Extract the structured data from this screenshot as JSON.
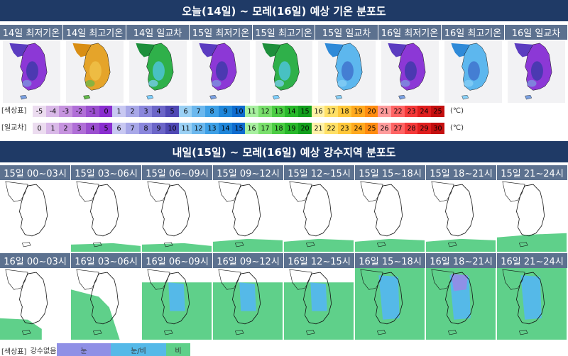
{
  "temp_section": {
    "title": "오늘(14일) ~ 모레(16일) 예상 기온 분포도",
    "panels": [
      {
        "label": "14일 최저기온",
        "scheme": "purple"
      },
      {
        "label": "14일 최고기온",
        "scheme": "warm"
      },
      {
        "label": "14일 일교차",
        "scheme": "green"
      },
      {
        "label": "15일 최저기온",
        "scheme": "purple"
      },
      {
        "label": "15일 최고기온",
        "scheme": "green"
      },
      {
        "label": "15일 일교차",
        "scheme": "cyan"
      },
      {
        "label": "16일 최저기온",
        "scheme": "purple"
      },
      {
        "label": "16일 최고기온",
        "scheme": "cyan"
      },
      {
        "label": "16일 일교차",
        "scheme": "purple"
      }
    ],
    "temp_legend": {
      "label": "[색상표]",
      "values": [
        "-5",
        "-4",
        "-3",
        "-2",
        "-1",
        "0",
        "1",
        "2",
        "3",
        "4",
        "5",
        "6",
        "7",
        "8",
        "9",
        "10",
        "11",
        "12",
        "13",
        "14",
        "15",
        "16",
        "17",
        "18",
        "19",
        "20",
        "21",
        "22",
        "23",
        "24",
        "25"
      ],
      "colors": [
        "#ecdcf0",
        "#d9b8e8",
        "#c693df",
        "#b06fd7",
        "#9b4fcf",
        "#8a2ed0",
        "#c8c8f2",
        "#a8a8e8",
        "#8a86dc",
        "#6c66c8",
        "#4f48b4",
        "#9ad0f4",
        "#6cb8ee",
        "#3ea0e6",
        "#1f86da",
        "#0f6ccf",
        "#a8f0a0",
        "#7ae06c",
        "#4ccd44",
        "#28b82a",
        "#12a01c",
        "#fff2a8",
        "#ffe066",
        "#ffc83a",
        "#ffaa1f",
        "#ff8c10",
        "#ff9c9c",
        "#ff6464",
        "#f53a3a",
        "#e01e1e",
        "#c40f0f"
      ],
      "unit": "(℃)"
    },
    "range_legend": {
      "label": "[일교차]",
      "values": [
        "0",
        "1",
        "2",
        "3",
        "4",
        "5",
        "6",
        "7",
        "8",
        "9",
        "10",
        "11",
        "12",
        "13",
        "14",
        "15",
        "16",
        "17",
        "18",
        "19",
        "20",
        "21",
        "22",
        "23",
        "24",
        "25",
        "26",
        "27",
        "28",
        "29",
        "30"
      ],
      "colors": [
        "#ecdcf0",
        "#d9b8e8",
        "#c693df",
        "#b06fd7",
        "#9b4fcf",
        "#8a2ed0",
        "#c8c8f2",
        "#a8a8e8",
        "#8a86dc",
        "#6c66c8",
        "#4f48b4",
        "#9ad0f4",
        "#6cb8ee",
        "#3ea0e6",
        "#1f86da",
        "#0f6ccf",
        "#a8f0a0",
        "#7ae06c",
        "#4ccd44",
        "#28b82a",
        "#12a01c",
        "#fff2a8",
        "#ffe066",
        "#ffc83a",
        "#ffaa1f",
        "#ff8c10",
        "#ff9c9c",
        "#ff6464",
        "#f53a3a",
        "#e01e1e",
        "#c40f0f"
      ],
      "unit": "(℃)"
    }
  },
  "precip_section": {
    "title": "내일(15일) ~ 모레(16일) 예상 강수지역 분포도",
    "row1": [
      {
        "label": "15일 00~03시",
        "coverage": "none"
      },
      {
        "label": "15일 03~06시",
        "coverage": "south_light"
      },
      {
        "label": "15일 06~09시",
        "coverage": "south_light"
      },
      {
        "label": "15일 09~12시",
        "coverage": "south"
      },
      {
        "label": "15일 12~15시",
        "coverage": "south"
      },
      {
        "label": "15일 15~18시",
        "coverage": "south"
      },
      {
        "label": "15일 18~21시",
        "coverage": "south"
      },
      {
        "label": "15일 21~24시",
        "coverage": "south_more"
      }
    ],
    "row2": [
      {
        "label": "16일 00~03시",
        "coverage": "partial_sw"
      },
      {
        "label": "16일 03~06시",
        "coverage": "partial_west"
      },
      {
        "label": "16일 06~09시",
        "coverage": "mostly"
      },
      {
        "label": "16일 09~12시",
        "coverage": "mostly"
      },
      {
        "label": "16일 12~15시",
        "coverage": "mostly"
      },
      {
        "label": "16일 15~18시",
        "coverage": "full"
      },
      {
        "label": "16일 18~21시",
        "coverage": "full_snow"
      },
      {
        "label": "16일 21~24시",
        "coverage": "full"
      }
    ],
    "legend": {
      "label": "[색상표]",
      "items": [
        {
          "text": "강수없음",
          "color": "#ffffff"
        },
        {
          "text": "눈",
          "color": "#8f90e6"
        },
        {
          "text": "눈/비",
          "color": "#55b9e8"
        },
        {
          "text": "비",
          "color": "#5fd08a"
        }
      ]
    }
  }
}
